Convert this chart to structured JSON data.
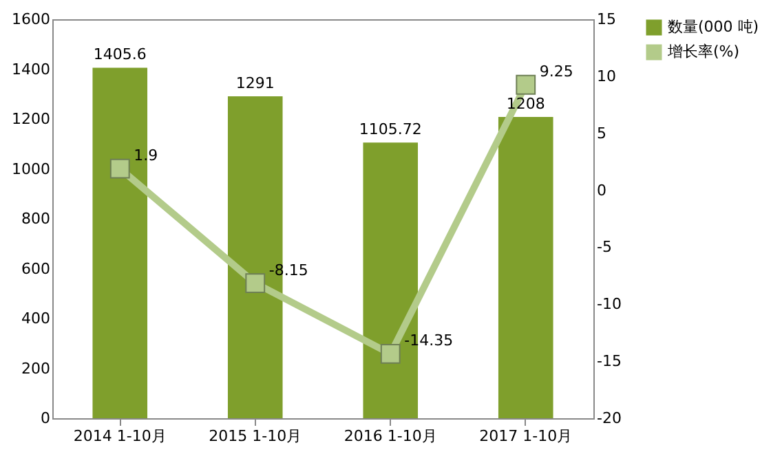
{
  "chart_data": {
    "type": "bar",
    "categories": [
      "2014 1-10月",
      "2015 1-10月",
      "2016 1-10月",
      "2017 1-10月"
    ],
    "series": [
      {
        "name": "数量(000 吨)",
        "color": "#7f9f2c",
        "values": [
          1405.6,
          1291,
          1105.72,
          1208
        ]
      },
      {
        "name": "增长率(%)",
        "type": "line",
        "axis": "y2",
        "color": "#b3cb8a",
        "marker": "square",
        "values": [
          1.9,
          -8.15,
          -14.35,
          9.25
        ]
      }
    ],
    "ylim": [
      0,
      1600
    ],
    "yticks": [
      0,
      200,
      400,
      600,
      800,
      1000,
      1200,
      1400,
      1600
    ],
    "y2lim": [
      -20,
      15
    ],
    "y2ticks": [
      -20,
      -15,
      -10,
      -5,
      0,
      5,
      10,
      15
    ],
    "data_labels": true,
    "grid": false,
    "legend": "right"
  }
}
